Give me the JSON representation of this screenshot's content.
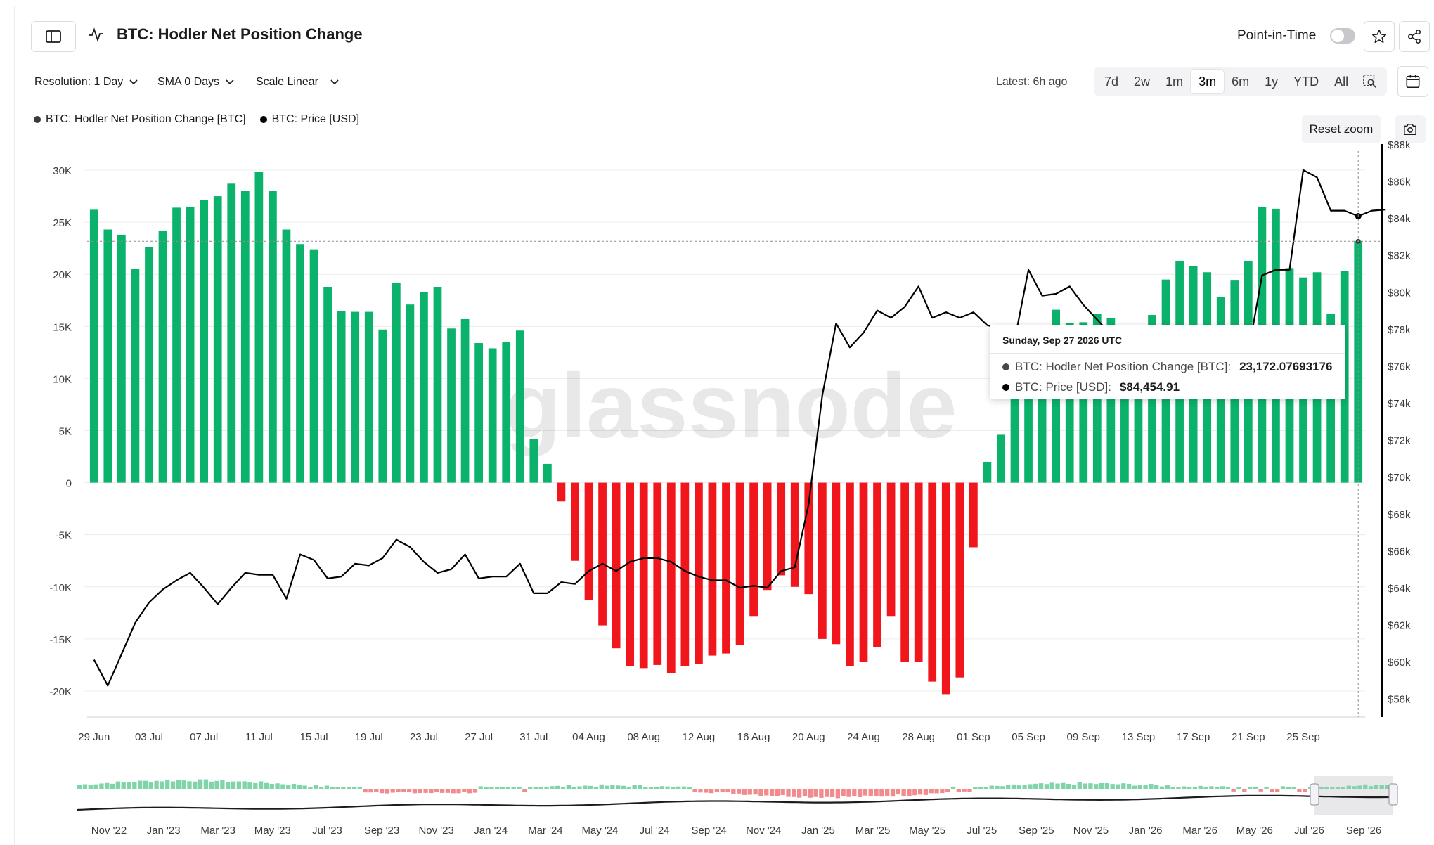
{
  "header": {
    "title": "BTC: Hodler Net Position Change",
    "point_in_time_label": "Point-in-Time",
    "icons": {
      "panel": "sidebar-toggle-icon",
      "metric": "activity-icon",
      "star": "star-icon",
      "share": "share-icon",
      "calendar": "calendar-icon",
      "camera": "camera-icon",
      "zoom": "zoom-select-icon"
    }
  },
  "controls": {
    "resolution": "Resolution: 1 Day",
    "sma": "SMA 0 Days",
    "scale": "Scale Linear",
    "latest": "Latest: 6h ago",
    "ranges": [
      "7d",
      "2w",
      "1m",
      "3m",
      "6m",
      "1y",
      "YTD",
      "All"
    ],
    "active_range": "3m",
    "reset_zoom": "Reset zoom"
  },
  "legend": [
    {
      "label": "BTC: Hodler Net Position Change [BTC]",
      "color": "#3a3a3c"
    },
    {
      "label": "BTC: Price [USD]",
      "color": "#000000"
    }
  ],
  "watermark": "glassnode",
  "tooltip": {
    "date": "Sunday, Sep 27 2026 UTC",
    "rows": [
      {
        "label": "BTC: Hodler Net Position Change [BTC]:",
        "value": "23,172.07693176",
        "color": "#48484a"
      },
      {
        "label": "BTC: Price [USD]:",
        "value": "$84,454.91",
        "color": "#000000"
      }
    ]
  },
  "chart_data": {
    "type": "bar",
    "colors": {
      "positive": "#0ab26b",
      "negative": "#f0161c",
      "price": "#000000"
    },
    "x_tick_labels": [
      "29 Jun",
      "03 Jul",
      "07 Jul",
      "11 Jul",
      "15 Jul",
      "19 Jul",
      "23 Jul",
      "27 Jul",
      "31 Jul",
      "04 Aug",
      "08 Aug",
      "12 Aug",
      "16 Aug",
      "20 Aug",
      "24 Aug",
      "28 Aug",
      "01 Sep",
      "05 Sep",
      "09 Sep",
      "13 Sep",
      "17 Sep",
      "21 Sep",
      "25 Sep"
    ],
    "y_left_ticks": [
      30000,
      25000,
      20000,
      15000,
      10000,
      5000,
      0,
      -5000,
      -10000,
      -15000,
      -20000
    ],
    "y_left_tick_labels": [
      "30K",
      "25K",
      "20K",
      "15K",
      "10K",
      "5K",
      "0",
      "-5K",
      "-10K",
      "-15K",
      "-20K"
    ],
    "y_left_range": [
      -22500,
      32500
    ],
    "y_right_ticks": [
      88000,
      86000,
      84000,
      82000,
      80000,
      78000,
      76000,
      74000,
      72000,
      70000,
      68000,
      66000,
      64000,
      62000,
      60000,
      58000
    ],
    "y_right_tick_labels": [
      "$88k",
      "$86k",
      "$84k",
      "$82k",
      "$80k",
      "$78k",
      "$76k",
      "$74k",
      "$72k",
      "$70k",
      "$68k",
      "$66k",
      "$64k",
      "$62k",
      "$60k",
      "$58k"
    ],
    "y_right_range": [
      57000,
      88000
    ],
    "series": [
      {
        "name": "BTC: Hodler Net Position Change [BTC]",
        "type": "bar",
        "values": [
          26200,
          24300,
          23800,
          20500,
          22600,
          24200,
          26400,
          26500,
          27100,
          27500,
          28700,
          28000,
          29800,
          28000,
          24300,
          22900,
          22400,
          18800,
          16500,
          16400,
          16400,
          14700,
          19200,
          17100,
          18300,
          18800,
          14800,
          15700,
          13400,
          12900,
          13500,
          14600,
          4200,
          1800,
          -1800,
          -7500,
          -11300,
          -13700,
          -15900,
          -17600,
          -17800,
          -17500,
          -18300,
          -17600,
          -17400,
          -16600,
          -16400,
          -15600,
          -12800,
          -10300,
          -8900,
          -10000,
          -10700,
          -15000,
          -15500,
          -17600,
          -17200,
          -15800,
          -12800,
          -17200,
          -17200,
          -19100,
          -20300,
          -18700,
          -6200,
          2000,
          4600,
          9400,
          11800,
          12100,
          16600,
          15300,
          15400,
          16200,
          15800,
          13800,
          14500,
          16100,
          19500,
          21300,
          20800,
          20200,
          17800,
          19400,
          21300,
          26500,
          26300,
          20600,
          19700,
          20200,
          16200,
          20300,
          23172
        ]
      },
      {
        "name": "BTC: Price [USD]",
        "type": "line",
        "values": [
          60100,
          58700,
          60400,
          62100,
          63200,
          63900,
          64400,
          64800,
          64000,
          63100,
          64000,
          64800,
          64700,
          64700,
          63400,
          65800,
          65500,
          64500,
          64600,
          65300,
          65200,
          65600,
          66600,
          66200,
          65400,
          64800,
          65000,
          65800,
          64500,
          64600,
          64600,
          65300,
          63700,
          63700,
          64300,
          64200,
          64900,
          65300,
          64900,
          65400,
          65600,
          65600,
          65400,
          64900,
          64600,
          64400,
          64400,
          64000,
          64100,
          64000,
          64900,
          65100,
          68500,
          74400,
          78300,
          77000,
          77800,
          79000,
          78600,
          79200,
          80300,
          78600,
          78900,
          78600,
          78900,
          78200,
          78000,
          77400,
          81200,
          79800,
          79900,
          80300,
          79300,
          78500,
          77700,
          77700,
          75600,
          76000,
          75400,
          74900,
          74300,
          74600,
          77100,
          77600,
          76700,
          80900,
          81200,
          81200,
          86600,
          86200,
          84400,
          84400,
          84100,
          84400,
          84455
        ]
      }
    ],
    "x_label": "",
    "y_label": "",
    "grid": true
  },
  "navigator": {
    "labels": [
      "Nov '22",
      "Jan '23",
      "Mar '23",
      "May '23",
      "Jul '23",
      "Sep '23",
      "Nov '23",
      "Jan '24",
      "Mar '24",
      "May '24",
      "Jul '24",
      "Sep '24",
      "Nov '24",
      "Jan '25",
      "Mar '25",
      "May '25",
      "Jul '25",
      "Sep '25",
      "Nov '25",
      "Jan '26",
      "Mar '26",
      "May '26",
      "Jul '26",
      "Sep '26"
    ]
  }
}
